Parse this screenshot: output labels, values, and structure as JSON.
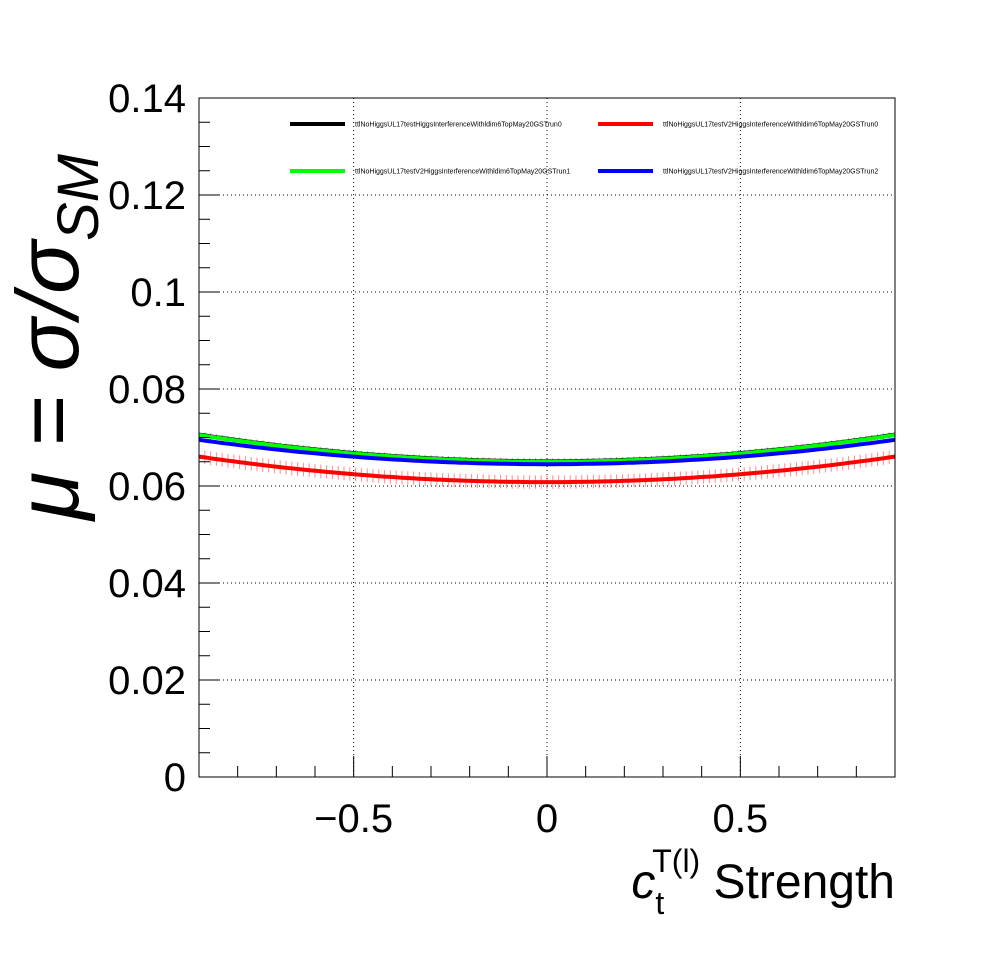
{
  "chart_data": {
    "type": "line",
    "title": "",
    "xlabel": {
      "base": "c",
      "sub": "t",
      "sup": "T(l)",
      "suffix": "Strength"
    },
    "ylabel": {
      "prefix": "μ = σ/σ",
      "sub": "SM"
    },
    "xlim": [
      -0.9,
      0.9
    ],
    "ylim": [
      0,
      0.14
    ],
    "xticks": [
      -0.5,
      0,
      0.5
    ],
    "xtick_labels": [
      "−0.5",
      "0",
      "0.5"
    ],
    "yticks": [
      0,
      0.02,
      0.04,
      0.06,
      0.08,
      0.1,
      0.12,
      0.14
    ],
    "ytick_labels": [
      "0",
      "0.02",
      "0.04",
      "0.06",
      "0.08",
      "0.1",
      "0.12",
      "0.14"
    ],
    "grid": true,
    "legend_position": "top",
    "series": [
      {
        "name": "ttlNoHiggsUL17testHiggsInterferenceWithldim6TopMay20GSTrun0",
        "color": "#000000",
        "a": 0.0651,
        "c": 0.0068,
        "err": 0.0006
      },
      {
        "name": "ttlNoHiggsUL17testV2HiggsInterferenceWithldim6TopMay20GSTrun0",
        "color": "#ff0000",
        "a": 0.0608,
        "c": 0.0065,
        "err": 0.0014
      },
      {
        "name": "ttlNoHiggsUL17testV2HiggsInterferenceWithldim6TopMay20GSTrun1",
        "color": "#00ff00",
        "a": 0.065,
        "c": 0.0068,
        "err": 0.0003
      },
      {
        "name": "ttlNoHiggsUL17testV2HiggsInterferenceWithldim6TopMay20GSTrun2",
        "color": "#0000ff",
        "a": 0.0645,
        "c": 0.0062,
        "err": 0.0003
      }
    ]
  }
}
